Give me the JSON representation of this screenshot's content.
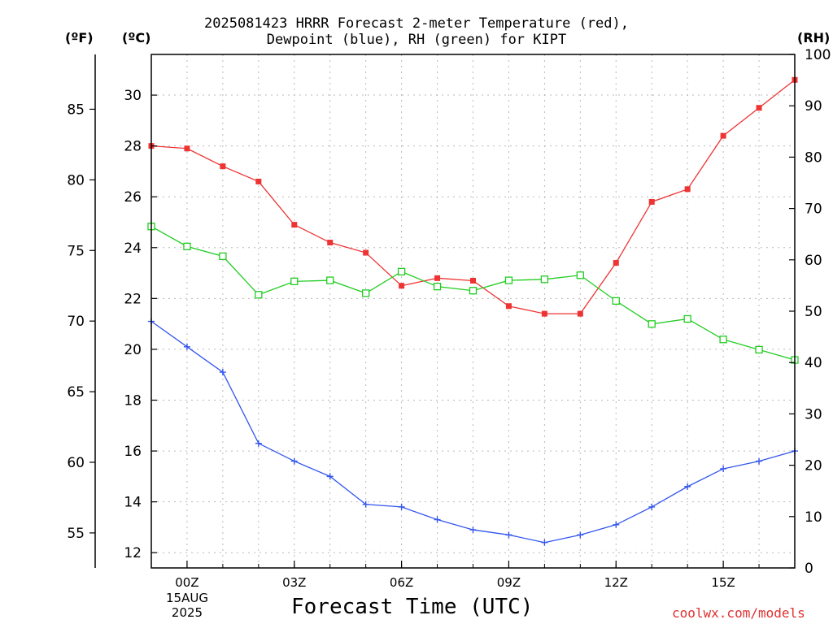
{
  "header": {
    "title_line1": "2025081423 HRRR Forecast 2-meter Temperature (red),",
    "title_line2": "Dewpoint (blue), RH (green) for KIPT",
    "unit_f": "(ºF)",
    "unit_c": "(ºC)",
    "unit_rh": "(RH)"
  },
  "footer": {
    "xlabel": "Forecast Time (UTC)",
    "credit": "coolwx.com/models",
    "date_day": "15AUG",
    "date_year": "2025"
  },
  "chart_data": {
    "type": "line",
    "title": "2025081423 HRRR Forecast 2-meter Temperature (red), Dewpoint (blue), RH (green) for KIPT",
    "xlabel": "Forecast Time (UTC)",
    "x_hours": [
      -1,
      0,
      1,
      2,
      3,
      4,
      5,
      6,
      7,
      8,
      9,
      10,
      11,
      12,
      13,
      14,
      15,
      16,
      17
    ],
    "x_ticks": [
      {
        "hour": 0,
        "label": "00Z"
      },
      {
        "hour": 3,
        "label": "03Z"
      },
      {
        "hour": 6,
        "label": "06Z"
      },
      {
        "hour": 9,
        "label": "09Z"
      },
      {
        "hour": 12,
        "label": "12Z"
      },
      {
        "hour": 15,
        "label": "15Z"
      }
    ],
    "xlim": [
      -1,
      17
    ],
    "left_axis_c": {
      "label": "(ºC)",
      "ticks": [
        12,
        14,
        16,
        18,
        20,
        22,
        24,
        26,
        28,
        30
      ],
      "lim": [
        11.4,
        31.6
      ]
    },
    "left_axis_f": {
      "label": "(ºF)",
      "ticks": [
        55,
        60,
        65,
        70,
        75,
        80,
        85
      ]
    },
    "right_axis_rh": {
      "label": "(RH)",
      "ticks": [
        0,
        10,
        20,
        30,
        40,
        50,
        60,
        70,
        80,
        90,
        100
      ],
      "lim": [
        0,
        100
      ]
    },
    "grid": true,
    "series": [
      {
        "name": "Temperature",
        "color": "#ee3333",
        "marker": "filled-square",
        "axis": "C",
        "values": [
          28.0,
          27.9,
          27.2,
          26.6,
          24.9,
          24.2,
          23.8,
          22.5,
          22.8,
          22.7,
          21.7,
          21.4,
          21.4,
          23.4,
          25.8,
          26.3,
          28.4,
          29.5,
          30.6
        ]
      },
      {
        "name": "Dewpoint",
        "color": "#3355ee",
        "marker": "plus",
        "axis": "C",
        "values": [
          21.1,
          20.1,
          19.1,
          16.3,
          15.6,
          15.0,
          13.9,
          13.8,
          13.3,
          12.9,
          12.7,
          12.4,
          12.7,
          13.1,
          13.8,
          14.6,
          15.3,
          15.6,
          16.0
        ]
      },
      {
        "name": "RH",
        "color": "#22cc22",
        "marker": "open-square",
        "axis": "RH",
        "values": [
          66.5,
          62.6,
          60.7,
          53.2,
          55.8,
          56.0,
          53.5,
          57.7,
          54.8,
          54.0,
          56.0,
          56.2,
          57.0,
          52.0,
          47.5,
          48.5,
          44.5,
          42.5,
          40.5
        ]
      }
    ]
  }
}
